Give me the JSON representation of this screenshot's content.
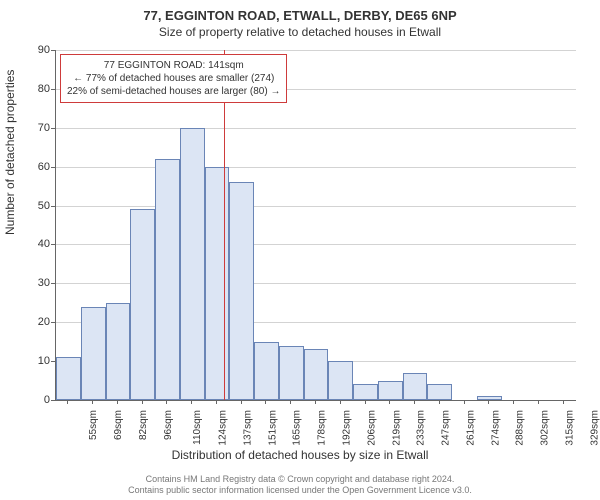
{
  "title": "77, EGGINTON ROAD, ETWALL, DERBY, DE65 6NP",
  "subtitle": "Size of property relative to detached houses in Etwall",
  "y_axis": {
    "label": "Number of detached properties",
    "min": 0,
    "max": 90,
    "step": 10,
    "label_fontsize": 12,
    "tick_fontsize": 11
  },
  "x_axis": {
    "label": "Distribution of detached houses by size in Etwall",
    "labels": [
      "55sqm",
      "69sqm",
      "82sqm",
      "96sqm",
      "110sqm",
      "124sqm",
      "137sqm",
      "151sqm",
      "165sqm",
      "178sqm",
      "192sqm",
      "206sqm",
      "219sqm",
      "233sqm",
      "247sqm",
      "261sqm",
      "274sqm",
      "288sqm",
      "302sqm",
      "315sqm",
      "329sqm"
    ],
    "label_fontsize": 12,
    "tick_fontsize": 10
  },
  "bars": {
    "values": [
      11,
      24,
      25,
      49,
      62,
      70,
      60,
      56,
      15,
      14,
      13,
      10,
      4,
      5,
      7,
      4,
      0,
      1,
      0,
      0,
      0
    ],
    "fill_color": "#dce5f4",
    "stroke_color": "#6a85b6"
  },
  "marker": {
    "position_sqm": 141,
    "color": "#ce3b3b"
  },
  "annotation": {
    "lines": [
      "77 EGGINTON ROAD: 141sqm",
      "← 77% of detached houses are smaller (274)",
      "22% of semi-detached houses are larger (80) →"
    ],
    "border_color": "#ce3b3b",
    "bg_color": "#ffffff",
    "fontsize": 10
  },
  "grid_color": "#d3d3d3",
  "background_color": "#ffffff",
  "footer": {
    "line1": "Contains HM Land Registry data © Crown copyright and database right 2024.",
    "line2": "Contains public sector information licensed under the Open Government Licence v3.0."
  }
}
